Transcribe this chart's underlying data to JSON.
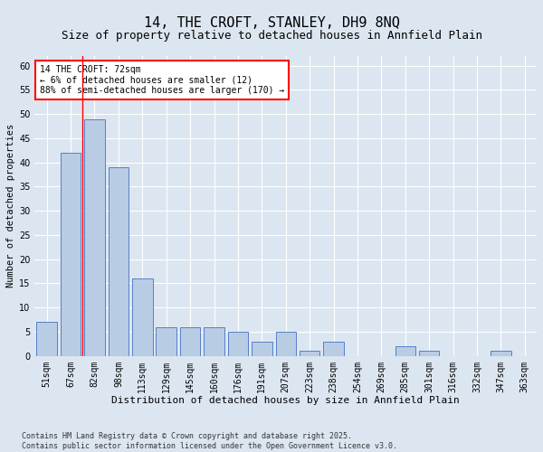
{
  "title": "14, THE CROFT, STANLEY, DH9 8NQ",
  "subtitle": "Size of property relative to detached houses in Annfield Plain",
  "xlabel": "Distribution of detached houses by size in Annfield Plain",
  "ylabel": "Number of detached properties",
  "categories": [
    "51sqm",
    "67sqm",
    "82sqm",
    "98sqm",
    "113sqm",
    "129sqm",
    "145sqm",
    "160sqm",
    "176sqm",
    "191sqm",
    "207sqm",
    "223sqm",
    "238sqm",
    "254sqm",
    "269sqm",
    "285sqm",
    "301sqm",
    "316sqm",
    "332sqm",
    "347sqm",
    "363sqm"
  ],
  "values": [
    7,
    42,
    49,
    39,
    16,
    6,
    6,
    6,
    5,
    3,
    5,
    1,
    3,
    0,
    0,
    2,
    1,
    0,
    0,
    1,
    0
  ],
  "bar_color": "#b8cce4",
  "bar_edge_color": "#4472c4",
  "background_color": "#dce6f1",
  "grid_color": "#ffffff",
  "annotation_text": "14 THE CROFT: 72sqm\n← 6% of detached houses are smaller (12)\n88% of semi-detached houses are larger (170) →",
  "annotation_box_color": "#ffffff",
  "annotation_box_edge_color": "#ff0000",
  "redline_bar_index": 1,
  "ylim": [
    0,
    62
  ],
  "yticks": [
    0,
    5,
    10,
    15,
    20,
    25,
    30,
    35,
    40,
    45,
    50,
    55,
    60
  ],
  "footer": "Contains HM Land Registry data © Crown copyright and database right 2025.\nContains public sector information licensed under the Open Government Licence v3.0.",
  "title_fontsize": 11,
  "subtitle_fontsize": 9,
  "xlabel_fontsize": 8,
  "ylabel_fontsize": 7.5,
  "tick_fontsize": 7,
  "annotation_fontsize": 7,
  "footer_fontsize": 6
}
